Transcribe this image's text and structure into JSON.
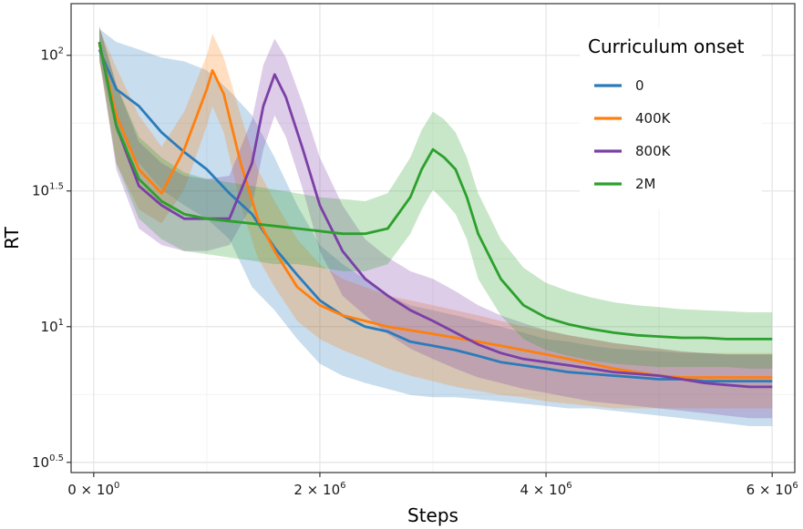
{
  "chart_data": {
    "type": "line",
    "xlabel": "Steps",
    "ylabel": "RT",
    "x_scale": "linear",
    "y_scale": "log10",
    "xlim": [
      -200000,
      6200000
    ],
    "ylim": [
      2.9,
      155
    ],
    "x_ticks": [
      {
        "value": 0,
        "base": "0 × 10",
        "exp": "0"
      },
      {
        "value": 2000000,
        "base": "2 × 10",
        "exp": "6"
      },
      {
        "value": 4000000,
        "base": "4 × 10",
        "exp": "6"
      },
      {
        "value": 6000000,
        "base": "6 × 10",
        "exp": "6"
      }
    ],
    "y_ticks": [
      {
        "value": 3.1623,
        "base": "10",
        "exp": "0.5"
      },
      {
        "value": 10,
        "base": "10",
        "exp": "1"
      },
      {
        "value": 31.623,
        "base": "10",
        "exp": "1.5"
      },
      {
        "value": 100,
        "base": "10",
        "exp": "2"
      }
    ],
    "grid": true,
    "legend": {
      "title": "Curriculum onset",
      "position": "top-right"
    },
    "series": [
      {
        "name": "0",
        "color": "#2b7bba",
        "x": [
          50000,
          200000,
          400000,
          600000,
          800000,
          1000000,
          1200000,
          1400000,
          1600000,
          1800000,
          2000000,
          2200000,
          2400000,
          2600000,
          2800000,
          3000000,
          3200000,
          3400000,
          3600000,
          3800000,
          4000000,
          4200000,
          4400000,
          4600000,
          4800000,
          5000000,
          5200000,
          5400000,
          5600000,
          5800000,
          6000000
        ],
        "values": [
          105,
          75,
          65,
          52,
          44,
          38,
          31,
          26,
          19.5,
          15.5,
          12.5,
          11,
          10,
          9.6,
          8.8,
          8.5,
          8.2,
          7.8,
          7.4,
          7.2,
          7,
          6.8,
          6.7,
          6.6,
          6.5,
          6.4,
          6.4,
          6.3,
          6.3,
          6.3,
          6.3
        ],
        "lower": [
          95,
          52,
          40,
          32,
          28,
          25,
          21,
          14,
          11.5,
          9,
          7.3,
          6.6,
          6.2,
          5.9,
          5.6,
          5.5,
          5.5,
          5.4,
          5.3,
          5.2,
          5.1,
          5,
          5,
          4.9,
          4.8,
          4.7,
          4.6,
          4.5,
          4.4,
          4.3,
          4.3
        ],
        "upper": [
          125,
          112,
          105,
          98,
          95,
          88,
          74,
          60,
          42,
          28,
          20,
          17,
          15,
          13,
          12,
          11.5,
          11,
          10.5,
          10,
          9.5,
          9,
          8.8,
          8.5,
          8.3,
          8.2,
          8.1,
          8,
          8,
          7.9,
          7.9,
          7.9
        ]
      },
      {
        "name": "400K",
        "color": "#ff7f0e",
        "x": [
          50000,
          200000,
          400000,
          600000,
          800000,
          1000000,
          1050000,
          1150000,
          1300000,
          1450000,
          1600000,
          1800000,
          2000000,
          2200000,
          2400000,
          2600000,
          2800000,
          3000000,
          3200000,
          3400000,
          3600000,
          3800000,
          4000000,
          4200000,
          4400000,
          4600000,
          4800000,
          5000000,
          5200000,
          5400000,
          5600000,
          5800000,
          6000000
        ],
        "values": [
          110,
          60,
          38,
          31,
          45,
          75,
          88,
          72,
          40,
          25,
          19,
          14,
          12,
          11,
          10.5,
          10,
          9.7,
          9.4,
          9.1,
          8.8,
          8.5,
          8.2,
          7.9,
          7.6,
          7.3,
          7,
          6.8,
          6.6,
          6.5,
          6.5,
          6.5,
          6.5,
          6.5
        ],
        "lower": [
          95,
          40,
          27,
          24,
          32,
          55,
          65,
          52,
          28,
          18,
          14,
          10.5,
          9,
          8.2,
          7.6,
          7,
          6.6,
          6.3,
          6,
          5.8,
          5.6,
          5.5,
          5.3,
          5.2,
          5.1,
          5,
          5,
          5,
          5,
          5,
          5,
          5,
          5
        ],
        "upper": [
          125,
          90,
          60,
          46,
          62,
          100,
          120,
          98,
          60,
          38,
          29,
          21,
          17,
          15,
          14,
          13,
          12.5,
          12,
          11.5,
          11,
          10.5,
          10,
          9.7,
          9.3,
          9,
          8.7,
          8.5,
          8.3,
          8.1,
          8,
          8,
          8,
          8
        ]
      },
      {
        "name": "800K",
        "color": "#7b3fa6",
        "x": [
          50000,
          200000,
          400000,
          600000,
          800000,
          1000000,
          1200000,
          1400000,
          1500000,
          1600000,
          1700000,
          1850000,
          2000000,
          2200000,
          2400000,
          2600000,
          2800000,
          3000000,
          3200000,
          3400000,
          3600000,
          3800000,
          4000000,
          4200000,
          4400000,
          4600000,
          4800000,
          5000000,
          5200000,
          5400000,
          5600000,
          5800000,
          6000000
        ],
        "values": [
          112,
          55,
          33,
          28,
          25,
          25,
          25,
          40,
          65,
          85,
          70,
          45,
          28,
          19,
          15,
          13,
          11.5,
          10.5,
          9.5,
          8.6,
          8,
          7.6,
          7.4,
          7.2,
          7,
          6.8,
          6.7,
          6.6,
          6.4,
          6.2,
          6.1,
          6,
          6
        ],
        "lower": [
          98,
          38,
          23,
          20,
          19,
          19,
          20,
          28,
          45,
          60,
          50,
          32,
          19,
          13,
          11,
          9.4,
          8.3,
          7.6,
          7,
          6.5,
          6.2,
          5.9,
          5.7,
          5.5,
          5.3,
          5.2,
          5.1,
          5,
          4.9,
          4.8,
          4.7,
          4.6,
          4.6
        ],
        "upper": [
          128,
          78,
          48,
          40,
          36,
          35,
          36,
          58,
          92,
          115,
          98,
          66,
          42,
          28,
          21,
          18,
          16,
          15,
          13.5,
          12,
          11,
          10.3,
          9.7,
          9.3,
          9,
          8.7,
          8.5,
          8.3,
          8.1,
          8,
          7.9,
          7.9,
          7.9
        ]
      },
      {
        "name": "2M",
        "color": "#2ca02c",
        "x": [
          50000,
          200000,
          400000,
          600000,
          800000,
          1000000,
          1200000,
          1400000,
          1600000,
          1800000,
          2000000,
          2200000,
          2400000,
          2600000,
          2800000,
          2900000,
          3000000,
          3100000,
          3200000,
          3300000,
          3400000,
          3600000,
          3800000,
          4000000,
          4200000,
          4400000,
          4600000,
          4800000,
          5000000,
          5200000,
          5400000,
          5600000,
          5800000,
          6000000
        ],
        "values": [
          112,
          55,
          35,
          29,
          26,
          25,
          24.5,
          24,
          23.5,
          23,
          22.5,
          22,
          22,
          23,
          30,
          38,
          45,
          42,
          38,
          30,
          22,
          15,
          12,
          10.8,
          10.2,
          9.8,
          9.5,
          9.3,
          9.2,
          9.1,
          9.1,
          9,
          9,
          9
        ],
        "lower": [
          98,
          40,
          25,
          21,
          19,
          18.5,
          18,
          17.5,
          17,
          17,
          16.5,
          16,
          16,
          17,
          22,
          27,
          32,
          29,
          26,
          21,
          15,
          11,
          9,
          8.2,
          7.8,
          7.5,
          7.3,
          7.2,
          7.1,
          7.1,
          7.1,
          7.1,
          7,
          7
        ],
        "upper": [
          128,
          78,
          50,
          42,
          37,
          35,
          34,
          33,
          32,
          31,
          30,
          29.5,
          29,
          31,
          42,
          53,
          62,
          58,
          52,
          42,
          31,
          21,
          16.5,
          14.5,
          13.5,
          12.8,
          12.3,
          12,
          11.8,
          11.6,
          11.5,
          11.4,
          11.3,
          11.3
        ]
      }
    ]
  }
}
